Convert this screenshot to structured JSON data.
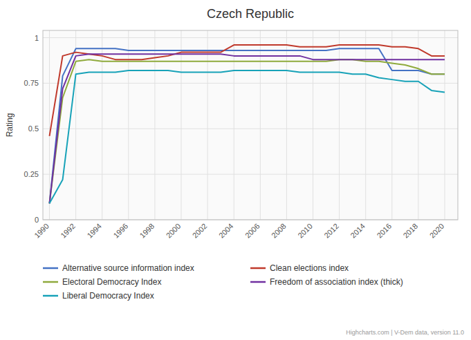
{
  "chart_data": {
    "type": "line",
    "title": "Czech Republic",
    "ylabel": "Rating",
    "x": [
      1990,
      1991,
      1992,
      1993,
      1994,
      1995,
      1996,
      1997,
      1998,
      1999,
      2000,
      2001,
      2002,
      2003,
      2004,
      2005,
      2006,
      2007,
      2008,
      2009,
      2010,
      2011,
      2012,
      2013,
      2014,
      2015,
      2016,
      2017,
      2018,
      2019,
      2020
    ],
    "xlim": [
      1989.5,
      2021
    ],
    "xticks": [
      1990,
      1992,
      1994,
      1996,
      1998,
      2000,
      2002,
      2004,
      2006,
      2008,
      2010,
      2012,
      2014,
      2016,
      2018,
      2020
    ],
    "ylim": [
      0,
      1.04
    ],
    "yticks": [
      0,
      0.25,
      0.5,
      0.75,
      1
    ],
    "grid": true,
    "legend": "bottom",
    "annotations": [
      "Highcharts.com | V-Dem data, version 11.0"
    ],
    "series": [
      {
        "name": "Alternative source information index",
        "color": "#4472c4",
        "values": [
          0.09,
          0.79,
          0.94,
          0.94,
          0.94,
          0.94,
          0.93,
          0.93,
          0.93,
          0.93,
          0.93,
          0.93,
          0.93,
          0.93,
          0.93,
          0.93,
          0.93,
          0.93,
          0.93,
          0.93,
          0.93,
          0.93,
          0.94,
          0.94,
          0.94,
          0.94,
          0.82,
          0.82,
          0.82,
          0.8,
          0.8
        ]
      },
      {
        "name": "Clean elections index",
        "color": "#c0392b",
        "values": [
          0.46,
          0.9,
          0.92,
          0.91,
          0.9,
          0.88,
          0.88,
          0.88,
          0.89,
          0.9,
          0.92,
          0.92,
          0.92,
          0.92,
          0.96,
          0.96,
          0.96,
          0.96,
          0.96,
          0.95,
          0.95,
          0.95,
          0.96,
          0.96,
          0.96,
          0.96,
          0.95,
          0.95,
          0.94,
          0.9,
          0.9
        ]
      },
      {
        "name": "Electoral Democracy Index",
        "color": "#8faa3c",
        "values": [
          0.09,
          0.67,
          0.87,
          0.88,
          0.87,
          0.87,
          0.87,
          0.87,
          0.87,
          0.87,
          0.87,
          0.87,
          0.87,
          0.87,
          0.87,
          0.87,
          0.87,
          0.87,
          0.87,
          0.87,
          0.87,
          0.87,
          0.88,
          0.88,
          0.87,
          0.87,
          0.86,
          0.85,
          0.83,
          0.8,
          0.8
        ]
      },
      {
        "name": "Freedom of association index (thick)",
        "color": "#7030a0",
        "values": [
          0.09,
          0.72,
          0.9,
          0.91,
          0.91,
          0.91,
          0.91,
          0.91,
          0.91,
          0.91,
          0.91,
          0.91,
          0.91,
          0.91,
          0.9,
          0.9,
          0.9,
          0.9,
          0.9,
          0.9,
          0.88,
          0.88,
          0.88,
          0.88,
          0.88,
          0.88,
          0.88,
          0.88,
          0.88,
          0.88,
          0.88
        ]
      },
      {
        "name": "Liberal Democracy Index",
        "color": "#17a2b8",
        "values": [
          0.09,
          0.22,
          0.8,
          0.81,
          0.81,
          0.81,
          0.82,
          0.82,
          0.82,
          0.82,
          0.81,
          0.81,
          0.81,
          0.81,
          0.82,
          0.82,
          0.82,
          0.82,
          0.82,
          0.81,
          0.81,
          0.81,
          0.81,
          0.8,
          0.8,
          0.78,
          0.77,
          0.76,
          0.76,
          0.71,
          0.7
        ]
      }
    ]
  }
}
